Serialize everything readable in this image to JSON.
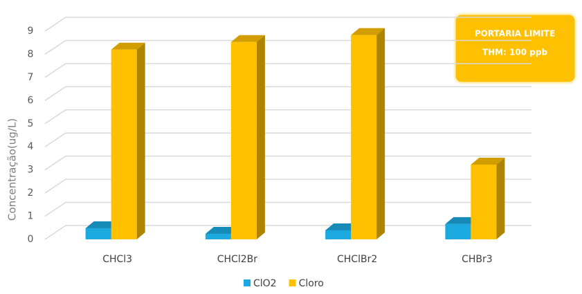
{
  "chart_data": {
    "type": "bar3d",
    "y_label": "Concentração(ug/L)",
    "categories": [
      "CHCl3",
      "CHCl2Br",
      "CHClBr2",
      "CHBr3"
    ],
    "series": [
      {
        "name": "ClO2",
        "color": "#1ca9e0",
        "values": [
          0.48,
          0.24,
          0.39,
          0.66
        ]
      },
      {
        "name": "Cloro",
        "color": "#ffc000",
        "values": [
          8.2,
          8.53,
          8.83,
          3.23
        ]
      }
    ],
    "ylim": [
      0,
      9
    ],
    "yticks": [
      0,
      1,
      2,
      3,
      4,
      5,
      6,
      7,
      8,
      9
    ],
    "grid": true,
    "legend": "bottom",
    "annotations": [
      "PORTARIA LIMITE",
      "THM: 100 ppb"
    ]
  }
}
